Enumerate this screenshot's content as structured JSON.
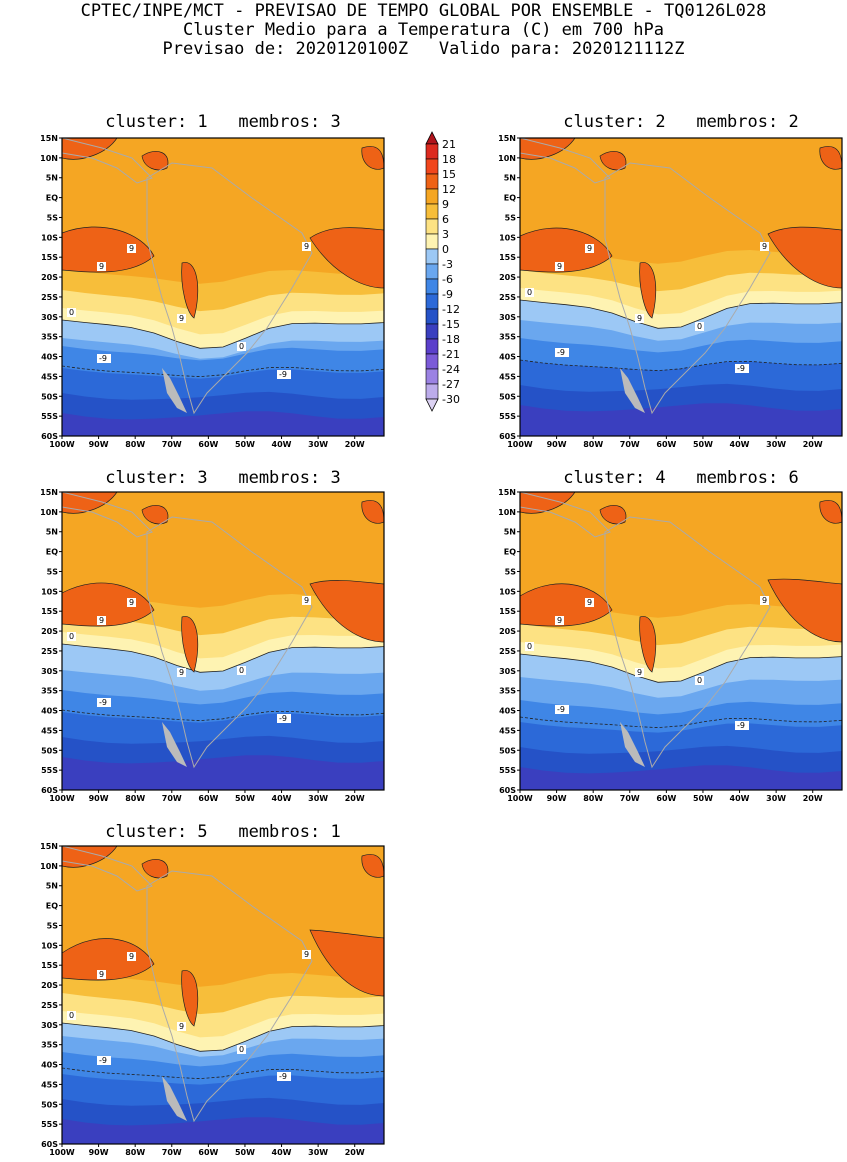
{
  "header": {
    "line1": "CPTEC/INPE/MCT - PREVISAO DE TEMPO GLOBAL POR ENSEMBLE - TQ0126L028",
    "line2": "Cluster Medio para a Temperatura (C) em 700 hPa",
    "line3": "Previsao de: 2020120100Z   Valido para: 2020121112Z"
  },
  "axes": {
    "lat_ticks": [
      "15N",
      "10N",
      "5N",
      "EQ",
      "5S",
      "10S",
      "15S",
      "20S",
      "25S",
      "30S",
      "35S",
      "40S",
      "45S",
      "50S",
      "55S",
      "60S"
    ],
    "lon_ticks": [
      "100W",
      "90W",
      "80W",
      "70W",
      "60W",
      "50W",
      "40W",
      "30W",
      "20W"
    ]
  },
  "legend": {
    "levels": [
      "21",
      "18",
      "15",
      "12",
      "9",
      "6",
      "3",
      "0",
      "-3",
      "-6",
      "-9",
      "-12",
      "-15",
      "-18",
      "-21",
      "-24",
      "-27",
      "-30"
    ],
    "colors": [
      "#b0141c",
      "#dc2a1f",
      "#f1461c",
      "#ee6216",
      "#f5a623",
      "#f7be3a",
      "#fde283",
      "#fef3b2",
      "#9cc8f5",
      "#6aa7ef",
      "#3f86e6",
      "#2c69d8",
      "#2552c7",
      "#3a3fbf",
      "#5b3fcb",
      "#7b5ad8",
      "#9b82e3",
      "#bcaceb",
      "#dcd2f3"
    ]
  },
  "colors": {
    "land_outline": "#aaaaaa",
    "contour": "#222222",
    "frame": "#000000"
  },
  "panels": [
    {
      "title": "cluster: 1   membros: 3",
      "labels": [
        "9",
        "9",
        "9",
        "9",
        "0",
        "0",
        "-9",
        "-9"
      ]
    },
    {
      "title": "cluster: 2   membros: 2",
      "labels": [
        "9",
        "9",
        "9",
        "9",
        "0",
        "0",
        "-9",
        "-9"
      ]
    },
    {
      "title": "cluster: 3   membros: 3",
      "labels": [
        "9",
        "9",
        "9",
        "9",
        "0",
        "0",
        "-9",
        "-9"
      ]
    },
    {
      "title": "cluster: 4   membros: 6",
      "labels": [
        "9",
        "9",
        "9",
        "9",
        "0",
        "0",
        "-9",
        "-9"
      ]
    },
    {
      "title": "cluster: 5   membros: 1",
      "labels": [
        "9",
        "9",
        "9",
        "9",
        "0",
        "0",
        "-9",
        "-9"
      ]
    }
  ]
}
